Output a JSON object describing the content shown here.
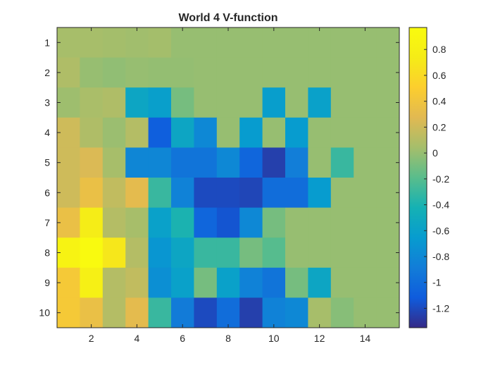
{
  "chart_data": {
    "type": "heatmap",
    "title": "World 4 V-function",
    "xlabel": "",
    "ylabel": "",
    "x_ticks": [
      "2",
      "4",
      "6",
      "8",
      "10",
      "12",
      "14"
    ],
    "y_ticks": [
      "1",
      "2",
      "3",
      "4",
      "5",
      "6",
      "7",
      "8",
      "9",
      "10"
    ],
    "xlim": [
      0.5,
      15.5
    ],
    "ylim": [
      0.5,
      10.5
    ],
    "y_reversed": true,
    "colormap": "parula",
    "clim": [
      -1.35,
      0.97
    ],
    "colorbar_ticks": [
      "0.8",
      "0.6",
      "0.4",
      "0.2",
      "0",
      "-0.2",
      "-0.4",
      "-0.6",
      "-0.8",
      "-1",
      "-1.2"
    ],
    "colorbar_tick_values": [
      0.8,
      0.6,
      0.4,
      0.2,
      0,
      -0.2,
      -0.4,
      -0.6,
      -0.8,
      -1,
      -1.2
    ],
    "grid": false,
    "values": [
      [
        0.05,
        0.05,
        0.04,
        0.03,
        0.04,
        0.0,
        0.0,
        0.0,
        0.0,
        0.0,
        0.0,
        0.0,
        0.0,
        0.0,
        0.0
      ],
      [
        0.08,
        0.0,
        -0.02,
        0.0,
        -0.01,
        -0.01,
        0.0,
        0.0,
        0.0,
        0.0,
        0.0,
        0.0,
        0.0,
        0.0,
        0.0
      ],
      [
        0.02,
        0.06,
        0.08,
        -0.55,
        -0.62,
        -0.1,
        0.0,
        0.0,
        0.0,
        -0.63,
        0.0,
        -0.6,
        0.0,
        0.0,
        0.0
      ],
      [
        0.2,
        0.08,
        0.01,
        0.1,
        -1.1,
        -0.55,
        -0.8,
        0.0,
        -0.65,
        0.0,
        -0.65,
        0.0,
        0.0,
        0.0,
        0.0
      ],
      [
        0.2,
        0.25,
        0.05,
        -0.82,
        -0.82,
        -0.95,
        -0.95,
        -0.8,
        -1.05,
        -1.25,
        -0.88,
        0.0,
        -0.3,
        0.0,
        0.0
      ],
      [
        0.2,
        0.35,
        0.15,
        0.3,
        -0.3,
        -0.85,
        -1.2,
        -1.2,
        -1.22,
        -1.0,
        -1.0,
        -0.65,
        0.0,
        0.0,
        0.0
      ],
      [
        0.35,
        0.75,
        0.1,
        0.05,
        -0.6,
        -0.4,
        -1.05,
        -1.15,
        -0.8,
        -0.1,
        0.0,
        0.0,
        0.0,
        0.0,
        0.0
      ],
      [
        0.85,
        0.95,
        0.7,
        0.1,
        -0.7,
        -0.55,
        -0.3,
        -0.3,
        -0.1,
        -0.2,
        0.0,
        0.0,
        0.0,
        0.0,
        0.0
      ],
      [
        0.45,
        0.8,
        0.1,
        0.15,
        -0.75,
        -0.6,
        -0.1,
        -0.6,
        -0.85,
        -0.95,
        -0.1,
        -0.55,
        0.0,
        0.0,
        0.0
      ],
      [
        0.45,
        0.35,
        0.1,
        0.3,
        -0.3,
        -0.9,
        -1.2,
        -1.0,
        -1.25,
        -0.85,
        -0.8,
        0.05,
        -0.05,
        0.0,
        0.0
      ]
    ]
  }
}
